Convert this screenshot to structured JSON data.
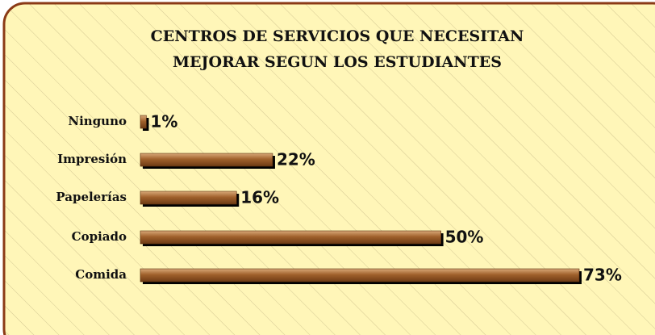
{
  "chart_data": {
    "type": "bar",
    "orientation": "horizontal",
    "title": [
      "CENTROS DE SERVICIOS QUE NECESITAN",
      "MEJORAR SEGUN LOS ESTUDIANTES"
    ],
    "categories": [
      "Ninguno",
      "Impresión",
      "Papelerías",
      "Copiado",
      "Comida"
    ],
    "values": [
      1,
      22,
      16,
      50,
      73
    ],
    "value_labels": [
      "1%",
      "22%",
      "16%",
      "50%",
      "73%"
    ],
    "color": "#a0612c"
  }
}
